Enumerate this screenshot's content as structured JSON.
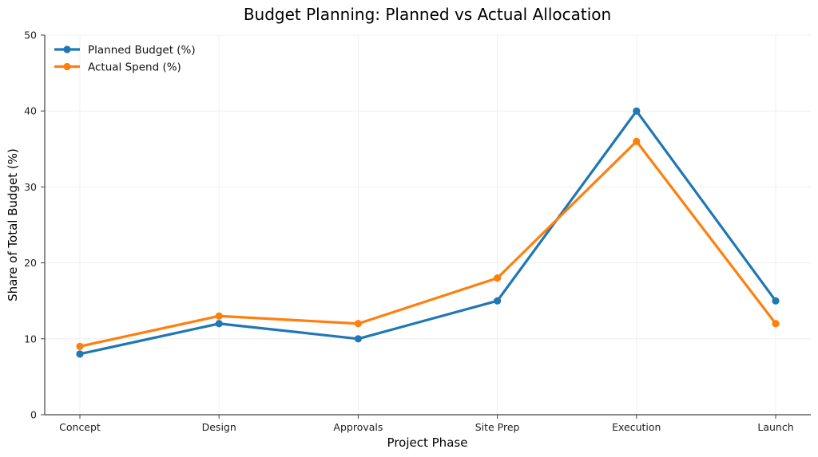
{
  "chart_data": {
    "type": "line",
    "title": "Budget Planning: Planned vs Actual Allocation",
    "xlabel": "Project Phase",
    "ylabel": "Share of Total Budget (%)",
    "categories": [
      "Concept",
      "Design",
      "Approvals",
      "Site Prep",
      "Execution",
      "Launch"
    ],
    "ylim": [
      0,
      50
    ],
    "yticks": [
      "0",
      "10",
      "20",
      "30",
      "40",
      "50"
    ],
    "ytick_values": [
      0,
      10,
      20,
      30,
      40,
      50
    ],
    "grid": true,
    "legend_position": "top-left",
    "series": [
      {
        "name": "Planned Budget (%)",
        "color": "#1f77b4",
        "values": [
          8,
          12,
          10,
          15,
          40,
          15
        ]
      },
      {
        "name": "Actual Spend (%)",
        "color": "#ff7f0e",
        "values": [
          9,
          13,
          12,
          18,
          36,
          12
        ]
      }
    ]
  }
}
